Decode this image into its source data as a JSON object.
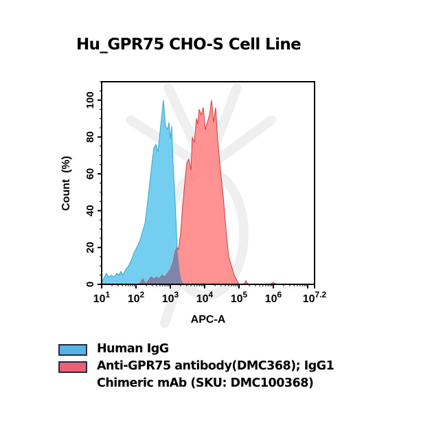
{
  "title": "Hu_GPR75 CHO-S Cell Line",
  "colors": {
    "human_igg_fill": "#6ccbef",
    "human_igg_stroke": "#3aa7cf",
    "anti_gpr75_fill": "#ff7f80",
    "anti_gpr75_stroke": "#d23a3e",
    "overlap": "#7e86a8",
    "legend_blue": "#55b4e4",
    "legend_red": "#ee5f72"
  },
  "legend": [
    {
      "label": "Human IgG",
      "color": "#55b4e4"
    },
    {
      "label": "Anti-GPR75 antibody(DMC368); IgG1\nChimeric mAb (SKU: DMC100368)",
      "color": "#ee5f72"
    }
  ],
  "chart_data": {
    "type": "area",
    "title": "Hu_GPR75 CHO-S Cell Line",
    "xlabel": "APC-A",
    "ylabel": "Count  (%)",
    "xscale": "log10",
    "xlim": [
      1,
      7.2
    ],
    "ylim": [
      0,
      110
    ],
    "x_tick_labels": [
      {
        "base": "10",
        "exp": "1",
        "pos": 1
      },
      {
        "base": "10",
        "exp": "2",
        "pos": 2
      },
      {
        "base": "10",
        "exp": "3",
        "pos": 3
      },
      {
        "base": "10",
        "exp": "4",
        "pos": 4
      },
      {
        "base": "10",
        "exp": "5",
        "pos": 5
      },
      {
        "base": "10",
        "exp": "6",
        "pos": 6
      },
      {
        "base": "10",
        "exp": "7.2",
        "pos": 7.2
      }
    ],
    "y_ticks": [
      0,
      20,
      40,
      60,
      80,
      100
    ],
    "grid": false,
    "legend_position": "bottom",
    "series": [
      {
        "name": "Human IgG",
        "x_log10": [
          1.0,
          1.08,
          1.14,
          1.2,
          1.28,
          1.36,
          1.44,
          1.5,
          1.56,
          1.62,
          1.7,
          1.78,
          1.86,
          1.94,
          2.02,
          2.1,
          2.18,
          2.26,
          2.34,
          2.4,
          2.46,
          2.52,
          2.58,
          2.64,
          2.7,
          2.74,
          2.8,
          2.86,
          2.92,
          2.96,
          3.0,
          3.04,
          3.08,
          3.14,
          3.2,
          3.26,
          3.32,
          3.38
        ],
        "y_percent": [
          1,
          4,
          6,
          4,
          5,
          4,
          6,
          5,
          7,
          5,
          8,
          10,
          13,
          17,
          20,
          23,
          28,
          33,
          45,
          55,
          65,
          74,
          76,
          72,
          83,
          90,
          100,
          86,
          84,
          88,
          79,
          86,
          66,
          45,
          20,
          8,
          2,
          0
        ]
      },
      {
        "name": "Anti-GPR75 antibody(DMC368); IgG1 Chimeric mAb (SKU: DMC100368)",
        "x_log10": [
          2.1,
          2.2,
          2.28,
          2.36,
          2.44,
          2.52,
          2.6,
          2.68,
          2.76,
          2.84,
          2.92,
          3.0,
          3.08,
          3.14,
          3.2,
          3.24,
          3.3,
          3.36,
          3.42,
          3.48,
          3.54,
          3.6,
          3.64,
          3.7,
          3.76,
          3.8,
          3.84,
          3.9,
          3.96,
          4.02,
          4.08,
          4.14,
          4.2,
          4.26,
          4.32,
          4.38,
          4.46,
          4.54,
          4.62,
          4.7,
          4.78,
          4.86,
          4.94,
          5.0,
          5.14,
          5.2,
          5.26,
          5.4,
          5.9,
          6.0,
          6.1
        ],
        "y_percent": [
          0,
          3,
          0,
          2,
          4,
          3,
          4,
          3,
          5,
          4,
          6,
          8,
          12,
          18,
          20,
          19,
          28,
          43,
          55,
          66,
          68,
          62,
          80,
          77,
          90,
          87,
          95,
          92,
          96,
          84,
          88,
          92,
          100,
          88,
          96,
          78,
          62,
          48,
          30,
          15,
          10,
          5,
          2,
          0,
          0,
          2,
          0,
          0,
          0,
          1,
          0
        ]
      }
    ]
  }
}
